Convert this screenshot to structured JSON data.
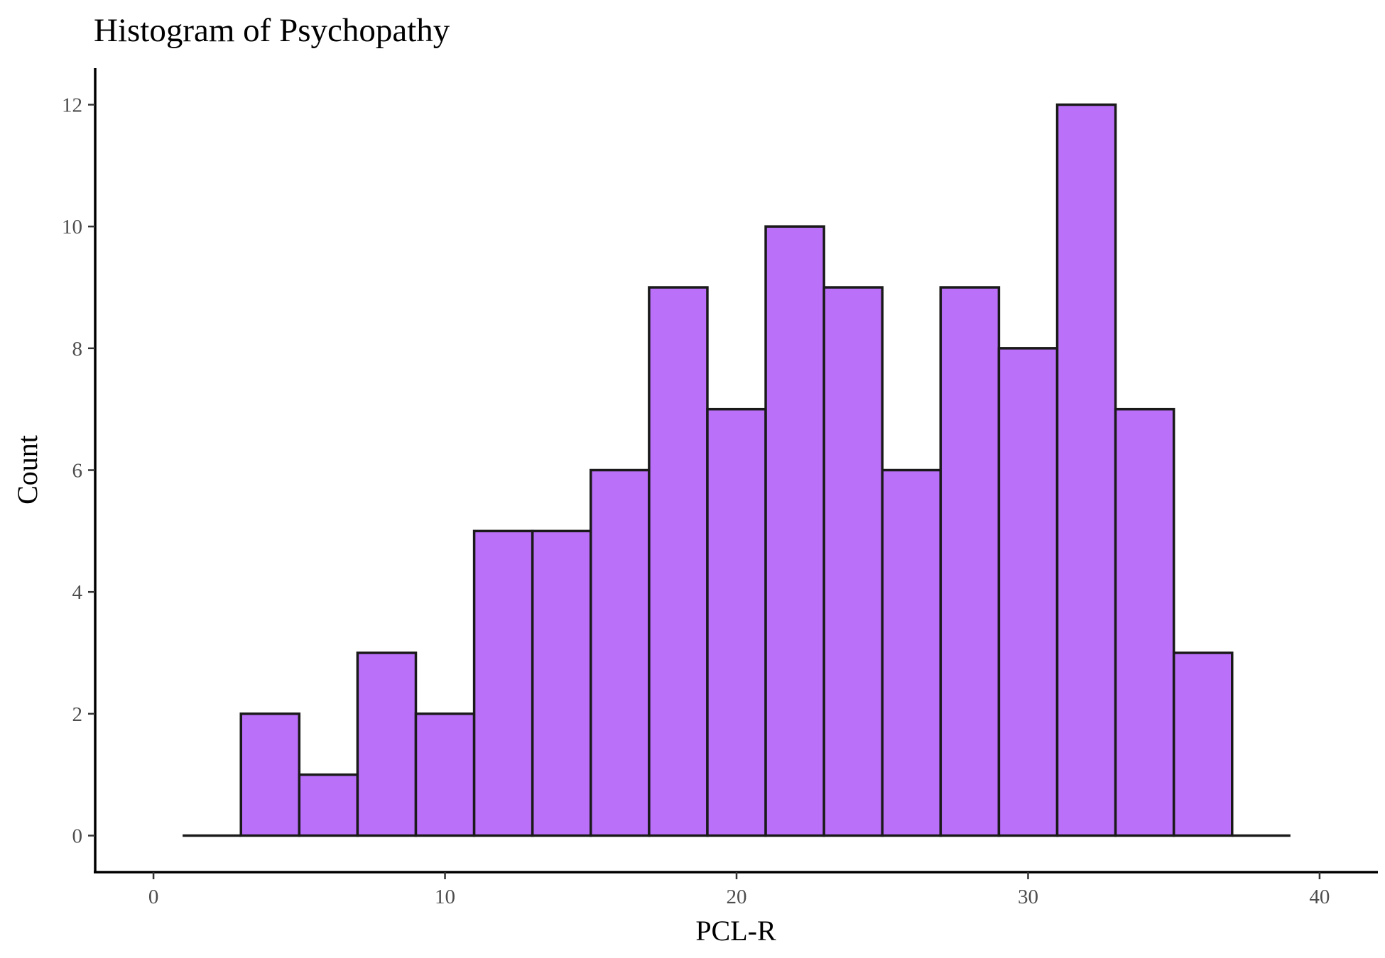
{
  "chart_data": {
    "type": "bar",
    "title": "Histogram of Psychopathy",
    "xlabel": "PCL-R",
    "ylabel": "Count",
    "bin_width": 2,
    "bins": [
      {
        "x0": 1,
        "x1": 3,
        "count": 0
      },
      {
        "x0": 3,
        "x1": 5,
        "count": 2
      },
      {
        "x0": 5,
        "x1": 7,
        "count": 1
      },
      {
        "x0": 7,
        "x1": 9,
        "count": 3
      },
      {
        "x0": 9,
        "x1": 11,
        "count": 2
      },
      {
        "x0": 11,
        "x1": 13,
        "count": 5
      },
      {
        "x0": 13,
        "x1": 15,
        "count": 5
      },
      {
        "x0": 15,
        "x1": 17,
        "count": 6
      },
      {
        "x0": 17,
        "x1": 19,
        "count": 9
      },
      {
        "x0": 19,
        "x1": 21,
        "count": 7
      },
      {
        "x0": 21,
        "x1": 23,
        "count": 10
      },
      {
        "x0": 23,
        "x1": 25,
        "count": 9
      },
      {
        "x0": 25,
        "x1": 27,
        "count": 6
      },
      {
        "x0": 27,
        "x1": 29,
        "count": 9
      },
      {
        "x0": 29,
        "x1": 31,
        "count": 8
      },
      {
        "x0": 31,
        "x1": 33,
        "count": 12
      },
      {
        "x0": 33,
        "x1": 35,
        "count": 7
      },
      {
        "x0": 35,
        "x1": 37,
        "count": 3
      },
      {
        "x0": 37,
        "x1": 39,
        "count": 0
      }
    ],
    "xlim": [
      -2,
      42
    ],
    "ylim": [
      -0.6,
      12.6
    ],
    "x_ticks": [
      0,
      10,
      20,
      30,
      40
    ],
    "y_ticks": [
      0,
      2,
      4,
      6,
      8,
      10,
      12
    ],
    "grid": false,
    "bar_fill": "#bb70fa",
    "bar_stroke": "#1a1a1a"
  }
}
